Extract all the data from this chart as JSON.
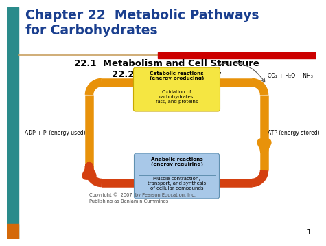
{
  "title_line1": "Chapter 22  Metabolic Pathways",
  "title_line2": "for Carbohydrates",
  "title_color": "#1a3f8f",
  "subtitle1": "22.1  Metabolism and Cell Structure",
  "subtitle2": "22.2  ATP and Energy",
  "bg_color": "#ffffff",
  "teal_bar_color": "#2a8b8b",
  "orange_bar_color": "#d4690a",
  "red_accent_color": "#cc0000",
  "tan_line_color": "#c8a060",
  "catabolic_box_fill": "#f5e642",
  "catabolic_box_edge": "#c8a800",
  "catabolic_title": "Catabolic reactions\n(energy producing)",
  "catabolic_body": "Oxidation of\ncarbohydrates,\nfats, and proteins",
  "anabolic_box_fill": "#a8c8e8",
  "anabolic_box_edge": "#6090b0",
  "anabolic_title": "Anabolic reactions\n(energy requiring)",
  "anabolic_body": "Muscle contraction,\ntransport, and synthesis\nof cellular compounds",
  "co2_label": "CO₂ + H₂O + NH₃",
  "adp_label": "ADP + Pᵢ (energy used)",
  "atp_label": "ATP (energy stored)",
  "arrow_orange": "#e8920a",
  "arrow_red": "#d44010",
  "copyright": "Copyright ©  2007  by Pearson Education, Inc.\nPublishing as Benjamin Cummings",
  "page_num": "1"
}
